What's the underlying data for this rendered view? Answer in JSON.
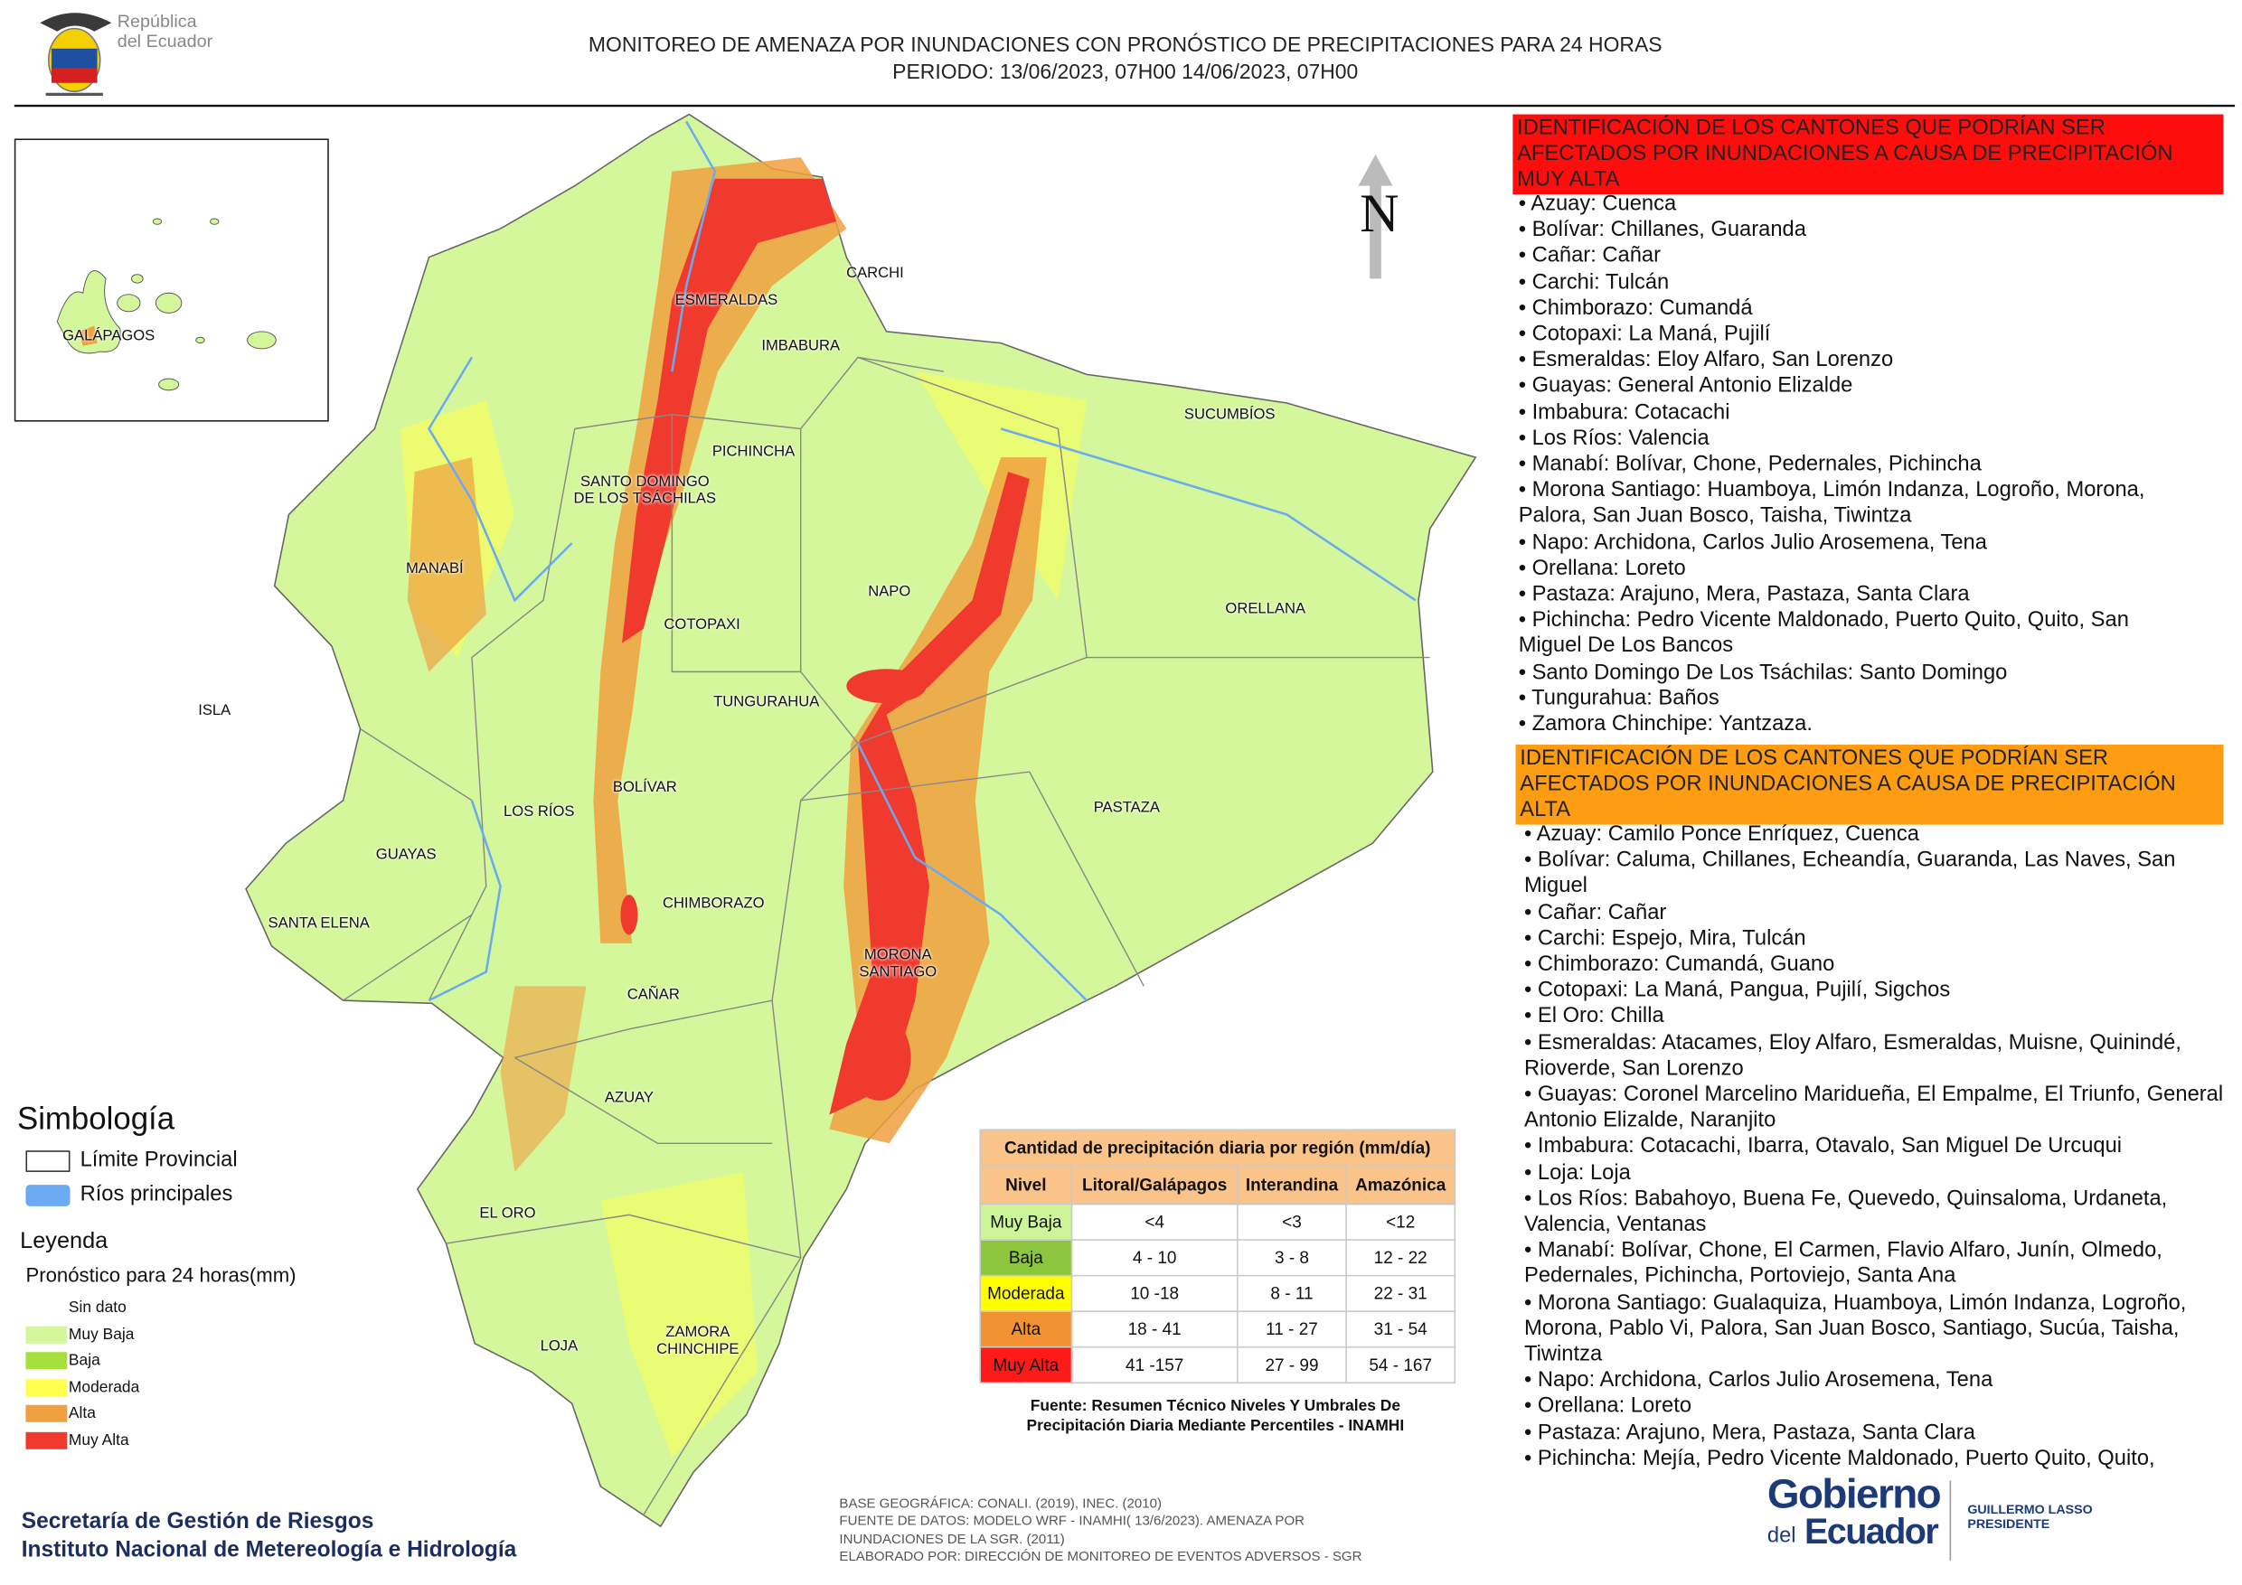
{
  "header": {
    "title_line1": "MONITOREO DE AMENAZA POR INUNDACIONES  CON PRONÓSTICO DE  PRECIPITACIONES PARA 24 HORAS",
    "title_line2": "PERIODO: 13/06/2023, 07H00 14/06/2023, 07H00",
    "logo_line1": "República",
    "logo_line2": "del Ecuador"
  },
  "map": {
    "north": "N",
    "labels": [
      "CARCHI",
      "ESMERALDAS",
      "IMBABURA",
      "SUCUMBÍOS",
      "PICHINCHA",
      "SANTO DOMINGO DE LOS TSÁCHILAS",
      "MANABÍ",
      "NAPO",
      "ORELLANA",
      "COTOPAXI",
      "ISLA",
      "TUNGURAHUA",
      "BOLÍVAR",
      "LOS RÍOS",
      "PASTAZA",
      "GUAYAS",
      "CHIMBORAZO",
      "SANTA ELENA",
      "MORONA SANTIAGO",
      "CAÑAR",
      "AZUAY",
      "EL ORO",
      "LOJA",
      "ZAMORA CHINCHIPE",
      "GALÁPAGOS"
    ]
  },
  "legend": {
    "symbology_title": "Simbología",
    "symbology_items": [
      {
        "label": "Límite Provincial",
        "color": "#ffffff"
      },
      {
        "label": "Ríos principales",
        "color": "#6aaaf0"
      }
    ],
    "title": "Leyenda",
    "subtitle": "Pronóstico para 24 horas(mm)",
    "items": [
      {
        "label": "Sin dato",
        "color": "#ffffff"
      },
      {
        "label": "Muy Baja",
        "color": "#d4f79b"
      },
      {
        "label": "Baja",
        "color": "#a6e03c"
      },
      {
        "label": "Moderada",
        "color": "#ffff4d"
      },
      {
        "label": "Alta",
        "color": "#f0a040"
      },
      {
        "label": "Muy Alta",
        "color": "#f03a2e"
      }
    ]
  },
  "table": {
    "title": "Cantidad de precipitación diaria por región (mm/día)",
    "headers": [
      "Nivel",
      "Litoral/Galápagos",
      "Interandina",
      "Amazónica"
    ],
    "rows": [
      {
        "level": "Muy Baja",
        "color": "#ccf59a",
        "values": [
          "<4",
          "<3",
          "<12"
        ]
      },
      {
        "level": "Baja",
        "color": "#8cc63f",
        "values": [
          "4 - 10",
          "3 - 8",
          "12 - 22"
        ]
      },
      {
        "level": "Moderada",
        "color": "#ffff00",
        "values": [
          "10 -18",
          "8 - 11",
          "22 - 31"
        ]
      },
      {
        "level": "Alta",
        "color": "#f39230",
        "values": [
          "18 - 41",
          "11 - 27",
          "31 - 54"
        ]
      },
      {
        "level": "Muy Alta",
        "color": "#ff1a1a",
        "values": [
          "41 -157",
          "27 - 99",
          "54 - 167"
        ]
      }
    ],
    "source_line1": "Fuente: Resumen Técnico Niveles Y Umbrales De",
    "source_line2": "Precipitación Diaria Mediante Percentiles - INAMHI"
  },
  "very_high": {
    "title": "IDENTIFICACIÓN DE LOS CANTONES QUE PODRÍAN SER AFECTADOS POR INUNDACIONES  A CAUSA DE PRECIPITACIÓN MUY ALTA",
    "items": [
      "• Azuay: Cuenca",
      "• Bolívar: Chillanes, Guaranda",
      "• Cañar: Cañar",
      "• Carchi: Tulcán",
      "• Chimborazo: Cumandá",
      "• Cotopaxi: La Maná, Pujilí",
      "• Esmeraldas: Eloy Alfaro, San Lorenzo",
      "• Guayas: General Antonio Elizalde",
      "• Imbabura: Cotacachi",
      "• Los Ríos: Valencia",
      "• Manabí: Bolívar, Chone, Pedernales, Pichincha",
      "• Morona Santiago: Huamboya, Limón Indanza, Logroño, Morona, Palora, San Juan Bosco, Taisha, Tiwintza",
      "• Napo: Archidona, Carlos Julio Arosemena, Tena",
      "• Orellana: Loreto",
      "• Pastaza: Arajuno, Mera, Pastaza, Santa Clara",
      "• Pichincha: Pedro Vicente Maldonado, Puerto Quito, Quito, San Miguel De Los Bancos",
      "• Santo Domingo De Los Tsáchilas: Santo Domingo",
      "• Tungurahua: Baños",
      "• Zamora Chinchipe: Yantzaza."
    ]
  },
  "high": {
    "title": "IDENTIFICACIÓN DE LOS CANTONES QUE  PODRÍAN SER AFECTADOS POR INUNDACIONES  A CAUSA DE PRECIPITACIÓN ALTA",
    "items": [
      "• Azuay: Camilo Ponce Enríquez, Cuenca",
      "• Bolívar: Caluma, Chillanes, Echeandía, Guaranda, Las Naves, San Miguel",
      "• Cañar: Cañar",
      "• Carchi: Espejo, Mira, Tulcán",
      "• Chimborazo: Cumandá, Guano",
      "• Cotopaxi: La Maná, Pangua, Pujilí, Sigchos",
      "• El Oro: Chilla",
      "• Esmeraldas: Atacames, Eloy Alfaro, Esmeraldas, Muisne, Quinindé, Rioverde, San Lorenzo",
      "• Guayas: Coronel Marcelino Maridueña, El Empalme, El Triunfo, General Antonio Elizalde, Naranjito",
      "• Imbabura: Cotacachi, Ibarra, Otavalo, San Miguel De Urcuqui",
      "• Loja: Loja",
      "• Los Ríos: Babahoyo, Buena Fe, Quevedo, Quinsaloma, Urdaneta, Valencia, Ventanas",
      "• Manabí: Bolívar, Chone, El Carmen, Flavio Alfaro, Junín, Olmedo, Pedernales, Pichincha, Portoviejo, Santa Ana",
      "• Morona Santiago: Gualaquiza, Huamboya, Limón Indanza, Logroño, Morona, Pablo Vi, Palora, San Juan Bosco, Santiago, Sucúa, Taisha, Tiwintza",
      "• Napo: Archidona, Carlos Julio Arosemena, Tena",
      "• Orellana: Loreto",
      "• Pastaza: Arajuno, Mera, Pastaza, Santa Clara",
      "• Pichincha: Mejía, Pedro Vicente Maldonado, Puerto Quito, Quito,"
    ]
  },
  "footer": {
    "org_line1": "Secretaría de Gestión de Riesgos",
    "org_line2": "Instituto Nacional de Metereología e Hidrología",
    "credits": [
      "BASE GEOGRÁFICA: CONALI. (2019), INEC. (2010)",
      "FUENTE DE DATOS: MODELO WRF - INAMHI( 13/6/2023).  AMENAZA POR",
      "INUNDACIONES DE LA SGR. (2011)",
      "ELABORADO POR: DIRECCIÓN DE MONITOREO DE EVENTOS ADVERSOS - SGR"
    ],
    "gov_line1": "Gobierno",
    "gov_line2": "del",
    "gov_line3": "Ecuador",
    "president_line1": "GUILLERMO LASSO",
    "president_line2": "PRESIDENTE"
  }
}
